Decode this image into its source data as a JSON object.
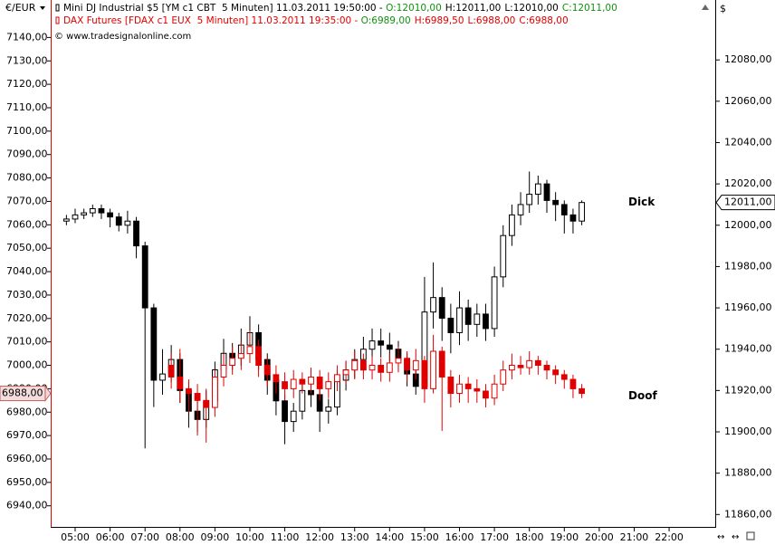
{
  "chart_data": {
    "type": "candlestick",
    "y_label": "€/EUR",
    "y2_label": "$",
    "copyright": "© www.tradesignalonline.com",
    "xlim": [
      4.3,
      23.32
    ],
    "xticks": [
      {
        "value": 5,
        "label": "05:00"
      },
      {
        "value": 6,
        "label": "06:00"
      },
      {
        "value": 7,
        "label": "07:00"
      },
      {
        "value": 8,
        "label": "08:00"
      },
      {
        "value": 9,
        "label": "09:00"
      },
      {
        "value": 10,
        "label": "10:00"
      },
      {
        "value": 11,
        "label": "11:00"
      },
      {
        "value": 12,
        "label": "12:00"
      },
      {
        "value": 13,
        "label": "13:00"
      },
      {
        "value": 14,
        "label": "14:00"
      },
      {
        "value": 15,
        "label": "15:00"
      },
      {
        "value": 16,
        "label": "16:00"
      },
      {
        "value": 17,
        "label": "17:00"
      },
      {
        "value": 18,
        "label": "18:00"
      },
      {
        "value": 19,
        "label": "19:00"
      },
      {
        "value": 20,
        "label": "20:00"
      },
      {
        "value": 21,
        "label": "21:00"
      },
      {
        "value": 22,
        "label": "22:00"
      }
    ],
    "ylim": [
      6931,
      7156
    ],
    "yticks": [
      {
        "value": 6940,
        "label": "6940,00"
      },
      {
        "value": 6950,
        "label": "6950,00"
      },
      {
        "value": 6960,
        "label": "6960,00"
      },
      {
        "value": 6970,
        "label": "6970,00"
      },
      {
        "value": 6980,
        "label": "6980,00"
      },
      {
        "value": 6990,
        "label": "6990,00"
      },
      {
        "value": 7000,
        "label": "7000,00"
      },
      {
        "value": 7010,
        "label": "7010,00"
      },
      {
        "value": 7020,
        "label": "7020,00"
      },
      {
        "value": 7030,
        "label": "7030,00"
      },
      {
        "value": 7040,
        "label": "7040,00"
      },
      {
        "value": 7050,
        "label": "7050,00"
      },
      {
        "value": 7060,
        "label": "7060,00"
      },
      {
        "value": 7070,
        "label": "7070,00"
      },
      {
        "value": 7080,
        "label": "7080,00"
      },
      {
        "value": 7090,
        "label": "7090,00"
      },
      {
        "value": 7100,
        "label": "7100,00"
      },
      {
        "value": 7110,
        "label": "7110,00"
      },
      {
        "value": 7120,
        "label": "7120,00"
      },
      {
        "value": 7130,
        "label": "7130,00"
      },
      {
        "value": 7140,
        "label": "7140,00"
      }
    ],
    "y2lim": [
      11854,
      12109
    ],
    "y2ticks": [
      {
        "value": 11860,
        "label": "11860,00"
      },
      {
        "value": 11880,
        "label": "11880,00"
      },
      {
        "value": 11900,
        "label": "11900,00"
      },
      {
        "value": 11920,
        "label": "11920,00"
      },
      {
        "value": 11940,
        "label": "11940,00"
      },
      {
        "value": 11960,
        "label": "11960,00"
      },
      {
        "value": 11980,
        "label": "11980,00"
      },
      {
        "value": 12000,
        "label": "12000,00"
      },
      {
        "value": 12020,
        "label": "12020,00"
      },
      {
        "value": 12040,
        "label": "12040,00"
      },
      {
        "value": 12060,
        "label": "12060,00"
      },
      {
        "value": 12080,
        "label": "12080,00"
      }
    ],
    "series": [
      {
        "name": "Mini DJ Industrial $5 [YM c1 CBT  5 Minuten] 11.03.2011 19:50:00 - ",
        "color": "#000000",
        "axis": "y2",
        "annotation": "Dick",
        "quote": [
          {
            "value": 12010,
            "label": "O:12010,00",
            "color": "#109010"
          },
          {
            "value": 12011,
            "label": "H:12011,00",
            "color": "#000000"
          },
          {
            "value": 12010,
            "label": "L:12010,00",
            "color": "#000000"
          },
          {
            "value": 12011,
            "label": "C:12011,00",
            "color": "#109010"
          }
        ],
        "last_label": {
          "value": 12011,
          "label": "12011,00"
        },
        "x": [
          4.75,
          5,
          5.25,
          5.5,
          5.75,
          6,
          6.25,
          6.5,
          6.75,
          7,
          7.25,
          7.5,
          7.75,
          8,
          8.25,
          8.5,
          8.75,
          9,
          9.25,
          9.5,
          9.75,
          10,
          10.25,
          10.5,
          10.75,
          11,
          11.25,
          11.5,
          11.75,
          12,
          12.25,
          12.5,
          12.75,
          13,
          13.25,
          13.5,
          13.75,
          14,
          14.25,
          14.5,
          14.75,
          15,
          15.25,
          15.5,
          15.75,
          16,
          16.25,
          16.5,
          16.75,
          17,
          17.25,
          17.5,
          17.75,
          18,
          18.25,
          18.5,
          18.75,
          19,
          19.25,
          19.5
        ],
        "open": [
          12002,
          12003,
          12005,
          12006,
          12008,
          12006,
          12004,
          12000,
          12002,
          11990,
          11960,
          11925,
          11928,
          11935,
          11920,
          11910,
          11906,
          11915,
          11930,
          11938,
          11936,
          11942,
          11948,
          11935,
          11925,
          11915,
          11905,
          11910,
          11920,
          11918,
          11910,
          11912,
          11925,
          11930,
          11935,
          11940,
          11944,
          11942,
          11940,
          11935,
          11928,
          11922,
          11958,
          11965,
          11955,
          11948,
          11960,
          11952,
          11957,
          11950,
          11975,
          11995,
          12005,
          12010,
          12015,
          12020,
          12012,
          12010,
          12005,
          12002
        ],
        "high": [
          12005,
          12008,
          12008,
          12010,
          12010,
          12008,
          12006,
          12007,
          12004,
          11992,
          11962,
          11940,
          11942,
          11938,
          11924,
          11916,
          11920,
          11934,
          11945,
          11943,
          11950,
          11956,
          11952,
          11938,
          11928,
          11918,
          11914,
          11924,
          11926,
          11922,
          11916,
          11930,
          11934,
          11940,
          11946,
          11950,
          11950,
          11948,
          11944,
          11938,
          11932,
          11975,
          11982,
          11970,
          11962,
          11968,
          11964,
          11962,
          11962,
          11980,
          12000,
          12010,
          12016,
          12026,
          12024,
          12022,
          12016,
          12012,
          12008,
          12012
        ],
        "low": [
          12000,
          12001,
          12003,
          12004,
          12003,
          11999,
          11997,
          11996,
          11984,
          11892,
          11912,
          11918,
          11924,
          11914,
          11902,
          11900,
          11902,
          11912,
          11926,
          11930,
          11932,
          11938,
          11930,
          11918,
          11908,
          11894,
          11900,
          11906,
          11912,
          11900,
          11904,
          11908,
          11920,
          11926,
          11930,
          11936,
          11936,
          11934,
          11930,
          11922,
          11918,
          11920,
          11950,
          11944,
          11938,
          11942,
          11944,
          11946,
          11944,
          11946,
          11970,
          11990,
          12000,
          12006,
          12010,
          12006,
          12002,
          11996,
          11996,
          12000
        ],
        "close": [
          12003,
          12005,
          12006,
          12008,
          12006,
          12004,
          12000,
          12002,
          11990,
          11960,
          11925,
          11928,
          11935,
          11920,
          11910,
          11906,
          11915,
          11930,
          11938,
          11936,
          11942,
          11948,
          11935,
          11925,
          11915,
          11905,
          11910,
          11920,
          11918,
          11910,
          11912,
          11925,
          11930,
          11935,
          11940,
          11944,
          11942,
          11940,
          11935,
          11928,
          11922,
          11958,
          11965,
          11955,
          11948,
          11960,
          11952,
          11957,
          11950,
          11975,
          11995,
          12005,
          12010,
          12015,
          12020,
          12012,
          12010,
          12005,
          12002,
          12011
        ]
      },
      {
        "name": "DAX Futures [FDAX c1 EUX  5 Minuten] 11.03.2011 19:35:00 - ",
        "color": "#e00000",
        "axis": "y",
        "annotation": "Doof",
        "quote": [
          {
            "value": 6989,
            "label": "O:6989,00",
            "color": "#109010"
          },
          {
            "value": 6989.5,
            "label": "H:6989,50",
            "color": "#e00000"
          },
          {
            "value": 6988,
            "label": "L:6988,00",
            "color": "#e00000"
          },
          {
            "value": 6988,
            "label": "C:6988,00",
            "color": "#e00000"
          }
        ],
        "last_label": {
          "value": 6988,
          "label": "6988,00"
        },
        "x": [
          7.75,
          8,
          8.25,
          8.5,
          8.75,
          9,
          9.25,
          9.5,
          9.75,
          10,
          10.25,
          10.5,
          10.75,
          11,
          11.25,
          11.5,
          11.75,
          12,
          12.25,
          12.5,
          12.75,
          13,
          13.25,
          13.5,
          13.75,
          14,
          14.25,
          14.5,
          14.75,
          15,
          15.25,
          15.5,
          15.75,
          16,
          16.25,
          16.5,
          16.75,
          17,
          17.25,
          17.5,
          17.75,
          18,
          18.25,
          18.5,
          18.75,
          19,
          19.25,
          19.5
        ],
        "open": [
          7000,
          6995,
          6990,
          6988,
          6985,
          6982,
          6995,
          7000,
          7003,
          7005,
          7008,
          7000,
          6996,
          6993,
          6990,
          6994,
          6992,
          6995,
          6990,
          6993,
          6996,
          6998,
          7002,
          6998,
          7000,
          6997,
          7001,
          7003,
          6998,
          7002,
          6990,
          7006,
          6995,
          6988,
          6992,
          6990,
          6989,
          6986,
          6992,
          6998,
          7000,
          6999,
          7002,
          7000,
          6998,
          6996,
          6994,
          6990
        ],
        "high": [
          7005,
          7007,
          6994,
          6992,
          6990,
          6998,
          7005,
          7008,
          7010,
          7015,
          7011,
          7003,
          7000,
          6997,
          6998,
          6997,
          6999,
          6998,
          6997,
          7000,
          7002,
          7006,
          7005,
          7004,
          7003,
          7005,
          7008,
          7006,
          7007,
          7004,
          7013,
          7008,
          6998,
          6996,
          6995,
          6994,
          6992,
          6996,
          7002,
          7005,
          7004,
          7006,
          7004,
          7002,
          7000,
          6998,
          6996,
          6992
        ],
        "low": [
          6990,
          6984,
          6980,
          6970,
          6967,
          6978,
          6991,
          6996,
          6998,
          7001,
          6995,
          6991,
          6988,
          6985,
          6986,
          6988,
          6988,
          6985,
          6986,
          6989,
          6992,
          6994,
          6994,
          6994,
          6993,
          6993,
          6997,
          6993,
          6994,
          6984,
          6988,
          6972,
          6982,
          6984,
          6984,
          6984,
          6982,
          6983,
          6989,
          6994,
          6996,
          6996,
          6996,
          6994,
          6992,
          6990,
          6986,
          6986
        ],
        "close": [
          6995,
          6990,
          6988,
          6985,
          6982,
          6995,
          7000,
          7003,
          7005,
          7008,
          7000,
          6996,
          6993,
          6990,
          6994,
          6992,
          6995,
          6990,
          6993,
          6996,
          6998,
          7002,
          6998,
          7000,
          6997,
          7001,
          7003,
          6998,
          7002,
          6990,
          7006,
          6995,
          6988,
          6992,
          6990,
          6989,
          6986,
          6992,
          6998,
          7000,
          6999,
          7002,
          7000,
          6998,
          6996,
          6994,
          6990,
          6988
        ]
      }
    ]
  }
}
